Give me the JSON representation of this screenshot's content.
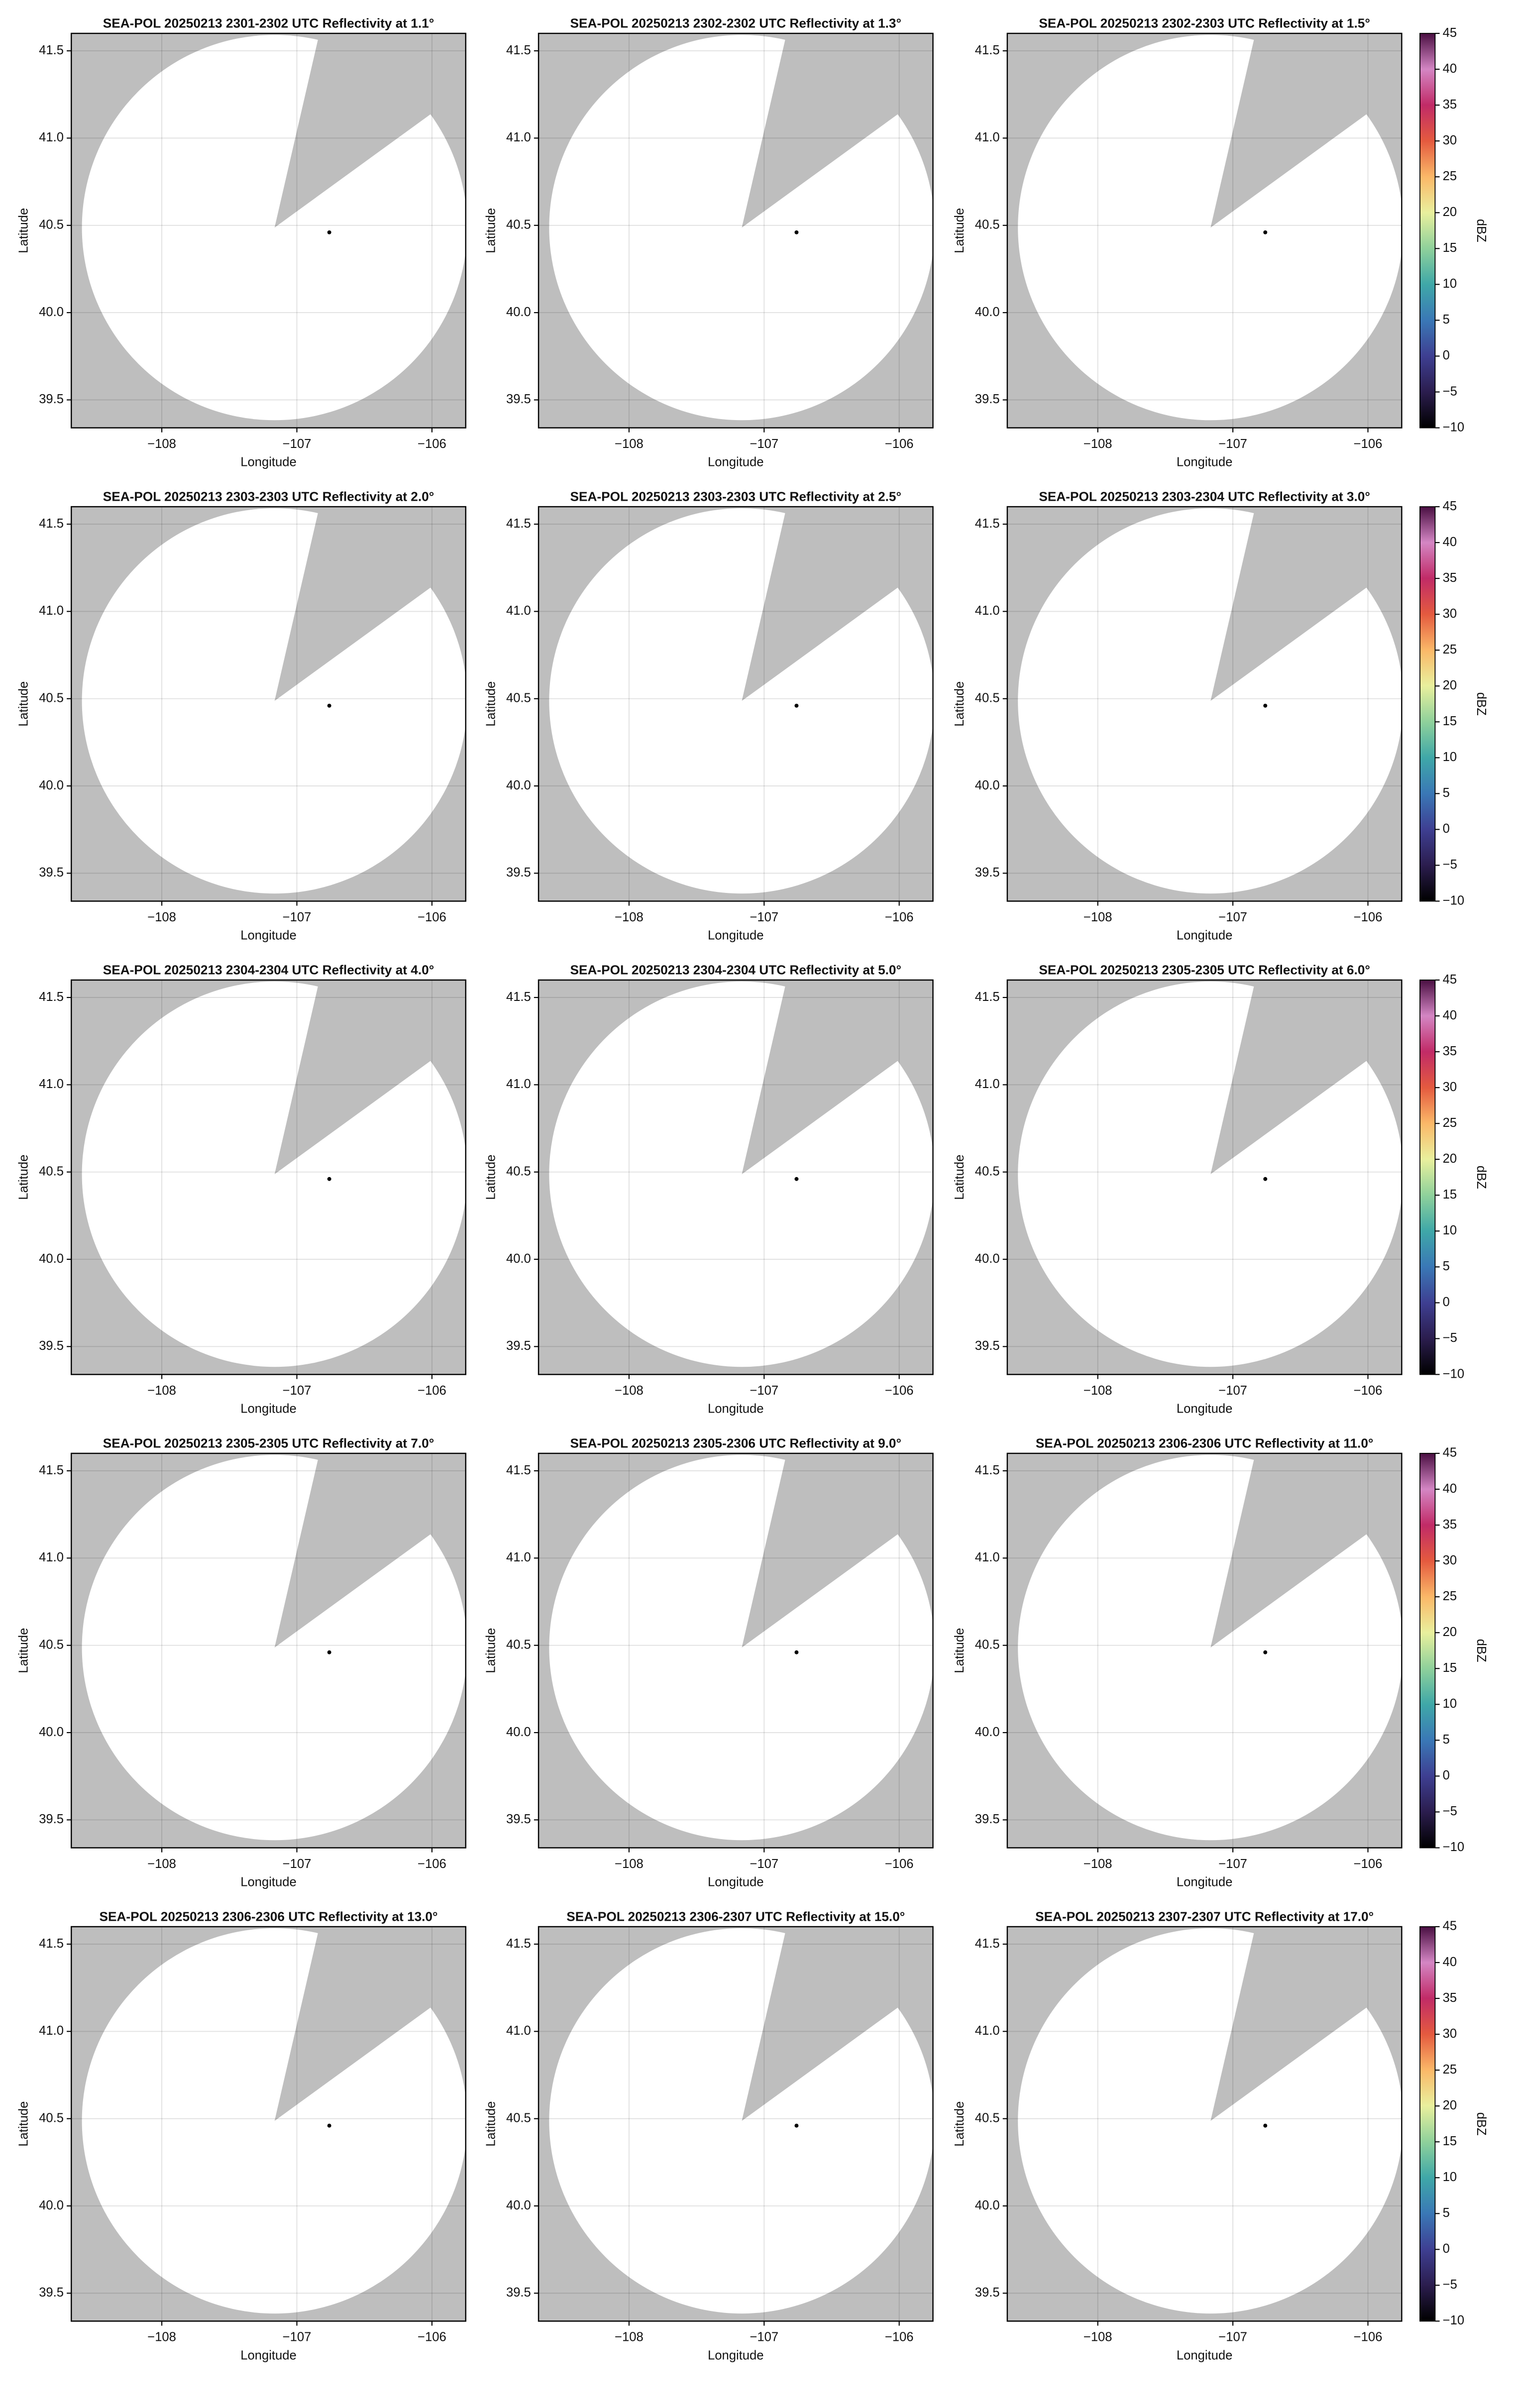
{
  "chart_data": [
    {
      "type": "radar",
      "title": "SEA-POL 20250213 2301-2302 UTC Reflectivity at 1.1°",
      "xlabel": "Longitude",
      "ylabel": "Latitude",
      "xlim": [
        -108.67,
        -105.75
      ],
      "ylim": [
        39.34,
        41.6
      ],
      "xticks": [
        {
          "value": -108,
          "label": "−108"
        },
        {
          "value": -107,
          "label": "−107"
        },
        {
          "value": -106,
          "label": "−106"
        }
      ],
      "yticks": [
        39.5,
        {
          "value": 40,
          "label": "40.0"
        },
        40.5,
        {
          "value": 41,
          "label": "41.0"
        },
        41.5
      ],
      "grid": true,
      "points": {
        "x": [
          -106.76
        ],
        "y": [
          40.46
        ],
        "color": "#000000"
      }
    },
    {
      "type": "radar",
      "title": "SEA-POL 20250213 2302-2302 UTC Reflectivity at 1.3°",
      "xlabel": "Longitude",
      "ylabel": "Latitude",
      "xlim": [
        -108.67,
        -105.75
      ],
      "ylim": [
        39.34,
        41.6
      ],
      "xticks": [
        {
          "value": -108,
          "label": "−108"
        },
        {
          "value": -107,
          "label": "−107"
        },
        {
          "value": -106,
          "label": "−106"
        }
      ],
      "yticks": [
        39.5,
        {
          "value": 40,
          "label": "40.0"
        },
        40.5,
        {
          "value": 41,
          "label": "41.0"
        },
        41.5
      ],
      "grid": true,
      "points": {
        "x": [
          -106.76
        ],
        "y": [
          40.46
        ],
        "color": "#000000"
      }
    },
    {
      "type": "radar",
      "title": "SEA-POL 20250213 2302-2303 UTC Reflectivity at 1.5°",
      "xlabel": "Longitude",
      "ylabel": "Latitude",
      "xlim": [
        -108.67,
        -105.75
      ],
      "ylim": [
        39.34,
        41.6
      ],
      "xticks": [
        {
          "value": -108,
          "label": "−108"
        },
        {
          "value": -107,
          "label": "−107"
        },
        {
          "value": -106,
          "label": "−106"
        }
      ],
      "yticks": [
        39.5,
        {
          "value": 40,
          "label": "40.0"
        },
        40.5,
        {
          "value": 41,
          "label": "41.0"
        },
        41.5
      ],
      "grid": true,
      "points": {
        "x": [
          -106.76
        ],
        "y": [
          40.46
        ],
        "color": "#000000"
      },
      "colorbar": {
        "label": "dBZ",
        "lim": [
          -10,
          45
        ],
        "ticks": [
          {
            "value": -10,
            "label": "−10"
          },
          {
            "value": -5,
            "label": "−5"
          },
          0,
          5,
          10,
          15,
          20,
          25,
          30,
          35,
          40,
          45
        ],
        "colors": [
          "#000000",
          "#2b1d4e",
          "#3e3f92",
          "#3a78b6",
          "#3fa8a8",
          "#8fd19b",
          "#e9f09d",
          "#fbb868",
          "#e45a3f",
          "#c12b67",
          "#d486c4",
          "#4a0f42"
        ]
      }
    },
    {
      "type": "radar",
      "title": "SEA-POL 20250213 2303-2303 UTC Reflectivity at 2.0°",
      "xlabel": "Longitude",
      "ylabel": "Latitude",
      "xlim": [
        -108.67,
        -105.75
      ],
      "ylim": [
        39.34,
        41.6
      ],
      "xticks": [
        {
          "value": -108,
          "label": "−108"
        },
        {
          "value": -107,
          "label": "−107"
        },
        {
          "value": -106,
          "label": "−106"
        }
      ],
      "yticks": [
        39.5,
        {
          "value": 40,
          "label": "40.0"
        },
        40.5,
        {
          "value": 41,
          "label": "41.0"
        },
        41.5
      ],
      "grid": true,
      "points": {
        "x": [
          -106.76
        ],
        "y": [
          40.46
        ],
        "color": "#000000"
      }
    },
    {
      "type": "radar",
      "title": "SEA-POL 20250213 2303-2303 UTC Reflectivity at 2.5°",
      "xlabel": "Longitude",
      "ylabel": "Latitude",
      "xlim": [
        -108.67,
        -105.75
      ],
      "ylim": [
        39.34,
        41.6
      ],
      "xticks": [
        {
          "value": -108,
          "label": "−108"
        },
        {
          "value": -107,
          "label": "−107"
        },
        {
          "value": -106,
          "label": "−106"
        }
      ],
      "yticks": [
        39.5,
        {
          "value": 40,
          "label": "40.0"
        },
        40.5,
        {
          "value": 41,
          "label": "41.0"
        },
        41.5
      ],
      "grid": true,
      "points": {
        "x": [
          -106.76
        ],
        "y": [
          40.46
        ],
        "color": "#000000"
      }
    },
    {
      "type": "radar",
      "title": "SEA-POL 20250213 2303-2304 UTC Reflectivity at 3.0°",
      "xlabel": "Longitude",
      "ylabel": "Latitude",
      "xlim": [
        -108.67,
        -105.75
      ],
      "ylim": [
        39.34,
        41.6
      ],
      "xticks": [
        {
          "value": -108,
          "label": "−108"
        },
        {
          "value": -107,
          "label": "−107"
        },
        {
          "value": -106,
          "label": "−106"
        }
      ],
      "yticks": [
        39.5,
        {
          "value": 40,
          "label": "40.0"
        },
        40.5,
        {
          "value": 41,
          "label": "41.0"
        },
        41.5
      ],
      "grid": true,
      "points": {
        "x": [
          -106.76
        ],
        "y": [
          40.46
        ],
        "color": "#000000"
      },
      "colorbar": {
        "label": "dBZ",
        "lim": [
          -10,
          45
        ],
        "ticks": [
          {
            "value": -10,
            "label": "−10"
          },
          {
            "value": -5,
            "label": "−5"
          },
          0,
          5,
          10,
          15,
          20,
          25,
          30,
          35,
          40,
          45
        ],
        "colors": [
          "#000000",
          "#2b1d4e",
          "#3e3f92",
          "#3a78b6",
          "#3fa8a8",
          "#8fd19b",
          "#e9f09d",
          "#fbb868",
          "#e45a3f",
          "#c12b67",
          "#d486c4",
          "#4a0f42"
        ]
      }
    },
    {
      "type": "radar",
      "title": "SEA-POL 20250213 2304-2304 UTC Reflectivity at 4.0°",
      "xlabel": "Longitude",
      "ylabel": "Latitude",
      "xlim": [
        -108.67,
        -105.75
      ],
      "ylim": [
        39.34,
        41.6
      ],
      "xticks": [
        {
          "value": -108,
          "label": "−108"
        },
        {
          "value": -107,
          "label": "−107"
        },
        {
          "value": -106,
          "label": "−106"
        }
      ],
      "yticks": [
        39.5,
        {
          "value": 40,
          "label": "40.0"
        },
        40.5,
        {
          "value": 41,
          "label": "41.0"
        },
        41.5
      ],
      "grid": true,
      "points": {
        "x": [
          -106.76
        ],
        "y": [
          40.46
        ],
        "color": "#000000"
      }
    },
    {
      "type": "radar",
      "title": "SEA-POL 20250213 2304-2304 UTC Reflectivity at 5.0°",
      "xlabel": "Longitude",
      "ylabel": "Latitude",
      "xlim": [
        -108.67,
        -105.75
      ],
      "ylim": [
        39.34,
        41.6
      ],
      "xticks": [
        {
          "value": -108,
          "label": "−108"
        },
        {
          "value": -107,
          "label": "−107"
        },
        {
          "value": -106,
          "label": "−106"
        }
      ],
      "yticks": [
        39.5,
        {
          "value": 40,
          "label": "40.0"
        },
        40.5,
        {
          "value": 41,
          "label": "41.0"
        },
        41.5
      ],
      "grid": true,
      "points": {
        "x": [
          -106.76
        ],
        "y": [
          40.46
        ],
        "color": "#000000"
      }
    },
    {
      "type": "radar",
      "title": "SEA-POL 20250213 2305-2305 UTC Reflectivity at 6.0°",
      "xlabel": "Longitude",
      "ylabel": "Latitude",
      "xlim": [
        -108.67,
        -105.75
      ],
      "ylim": [
        39.34,
        41.6
      ],
      "xticks": [
        {
          "value": -108,
          "label": "−108"
        },
        {
          "value": -107,
          "label": "−107"
        },
        {
          "value": -106,
          "label": "−106"
        }
      ],
      "yticks": [
        39.5,
        {
          "value": 40,
          "label": "40.0"
        },
        40.5,
        {
          "value": 41,
          "label": "41.0"
        },
        41.5
      ],
      "grid": true,
      "points": {
        "x": [
          -106.76
        ],
        "y": [
          40.46
        ],
        "color": "#000000"
      },
      "colorbar": {
        "label": "dBZ",
        "lim": [
          -10,
          45
        ],
        "ticks": [
          {
            "value": -10,
            "label": "−10"
          },
          {
            "value": -5,
            "label": "−5"
          },
          0,
          5,
          10,
          15,
          20,
          25,
          30,
          35,
          40,
          45
        ],
        "colors": [
          "#000000",
          "#2b1d4e",
          "#3e3f92",
          "#3a78b6",
          "#3fa8a8",
          "#8fd19b",
          "#e9f09d",
          "#fbb868",
          "#e45a3f",
          "#c12b67",
          "#d486c4",
          "#4a0f42"
        ]
      }
    },
    {
      "type": "radar",
      "title": "SEA-POL 20250213 2305-2305 UTC Reflectivity at 7.0°",
      "xlabel": "Longitude",
      "ylabel": "Latitude",
      "xlim": [
        -108.67,
        -105.75
      ],
      "ylim": [
        39.34,
        41.6
      ],
      "xticks": [
        {
          "value": -108,
          "label": "−108"
        },
        {
          "value": -107,
          "label": "−107"
        },
        {
          "value": -106,
          "label": "−106"
        }
      ],
      "yticks": [
        39.5,
        {
          "value": 40,
          "label": "40.0"
        },
        40.5,
        {
          "value": 41,
          "label": "41.0"
        },
        41.5
      ],
      "grid": true,
      "points": {
        "x": [
          -106.76
        ],
        "y": [
          40.46
        ],
        "color": "#000000"
      }
    },
    {
      "type": "radar",
      "title": "SEA-POL 20250213 2305-2306 UTC Reflectivity at 9.0°",
      "xlabel": "Longitude",
      "ylabel": "Latitude",
      "xlim": [
        -108.67,
        -105.75
      ],
      "ylim": [
        39.34,
        41.6
      ],
      "xticks": [
        {
          "value": -108,
          "label": "−108"
        },
        {
          "value": -107,
          "label": "−107"
        },
        {
          "value": -106,
          "label": "−106"
        }
      ],
      "yticks": [
        39.5,
        {
          "value": 40,
          "label": "40.0"
        },
        40.5,
        {
          "value": 41,
          "label": "41.0"
        },
        41.5
      ],
      "grid": true,
      "points": {
        "x": [
          -106.76
        ],
        "y": [
          40.46
        ],
        "color": "#000000"
      }
    },
    {
      "type": "radar",
      "title": "SEA-POL 20250213 2306-2306 UTC Reflectivity at 11.0°",
      "xlabel": "Longitude",
      "ylabel": "Latitude",
      "xlim": [
        -108.67,
        -105.75
      ],
      "ylim": [
        39.34,
        41.6
      ],
      "xticks": [
        {
          "value": -108,
          "label": "−108"
        },
        {
          "value": -107,
          "label": "−107"
        },
        {
          "value": -106,
          "label": "−106"
        }
      ],
      "yticks": [
        39.5,
        {
          "value": 40,
          "label": "40.0"
        },
        40.5,
        {
          "value": 41,
          "label": "41.0"
        },
        41.5
      ],
      "grid": true,
      "points": {
        "x": [
          -106.76
        ],
        "y": [
          40.46
        ],
        "color": "#000000"
      },
      "colorbar": {
        "label": "dBZ",
        "lim": [
          -10,
          45
        ],
        "ticks": [
          {
            "value": -10,
            "label": "−10"
          },
          {
            "value": -5,
            "label": "−5"
          },
          0,
          5,
          10,
          15,
          20,
          25,
          30,
          35,
          40,
          45
        ],
        "colors": [
          "#000000",
          "#2b1d4e",
          "#3e3f92",
          "#3a78b6",
          "#3fa8a8",
          "#8fd19b",
          "#e9f09d",
          "#fbb868",
          "#e45a3f",
          "#c12b67",
          "#d486c4",
          "#4a0f42"
        ]
      }
    },
    {
      "type": "radar",
      "title": "SEA-POL 20250213 2306-2306 UTC Reflectivity at 13.0°",
      "xlabel": "Longitude",
      "ylabel": "Latitude",
      "xlim": [
        -108.67,
        -105.75
      ],
      "ylim": [
        39.34,
        41.6
      ],
      "xticks": [
        {
          "value": -108,
          "label": "−108"
        },
        {
          "value": -107,
          "label": "−107"
        },
        {
          "value": -106,
          "label": "−106"
        }
      ],
      "yticks": [
        39.5,
        {
          "value": 40,
          "label": "40.0"
        },
        40.5,
        {
          "value": 41,
          "label": "41.0"
        },
        41.5
      ],
      "grid": true,
      "points": {
        "x": [
          -106.76
        ],
        "y": [
          40.46
        ],
        "color": "#000000"
      }
    },
    {
      "type": "radar",
      "title": "SEA-POL 20250213 2306-2307 UTC Reflectivity at 15.0°",
      "xlabel": "Longitude",
      "ylabel": "Latitude",
      "xlim": [
        -108.67,
        -105.75
      ],
      "ylim": [
        39.34,
        41.6
      ],
      "xticks": [
        {
          "value": -108,
          "label": "−108"
        },
        {
          "value": -107,
          "label": "−107"
        },
        {
          "value": -106,
          "label": "−106"
        }
      ],
      "yticks": [
        39.5,
        {
          "value": 40,
          "label": "40.0"
        },
        40.5,
        {
          "value": 41,
          "label": "41.0"
        },
        41.5
      ],
      "grid": true,
      "points": {
        "x": [
          -106.76
        ],
        "y": [
          40.46
        ],
        "color": "#000000"
      }
    },
    {
      "type": "radar",
      "title": "SEA-POL 20250213 2307-2307 UTC Reflectivity at 17.0°",
      "xlabel": "Longitude",
      "ylabel": "Latitude",
      "xlim": [
        -108.67,
        -105.75
      ],
      "ylim": [
        39.34,
        41.6
      ],
      "xticks": [
        {
          "value": -108,
          "label": "−108"
        },
        {
          "value": -107,
          "label": "−107"
        },
        {
          "value": -106,
          "label": "−106"
        }
      ],
      "yticks": [
        39.5,
        {
          "value": 40,
          "label": "40.0"
        },
        40.5,
        {
          "value": 41,
          "label": "41.0"
        },
        41.5
      ],
      "grid": true,
      "points": {
        "x": [
          -106.76
        ],
        "y": [
          40.46
        ],
        "color": "#000000"
      },
      "colorbar": {
        "label": "dBZ",
        "lim": [
          -10,
          45
        ],
        "ticks": [
          {
            "value": -10,
            "label": "−10"
          },
          {
            "value": -5,
            "label": "−5"
          },
          0,
          5,
          10,
          15,
          20,
          25,
          30,
          35,
          40,
          45
        ],
        "colors": [
          "#000000",
          "#2b1d4e",
          "#3e3f92",
          "#3a78b6",
          "#3fa8a8",
          "#8fd19b",
          "#e9f09d",
          "#fbb868",
          "#e45a3f",
          "#c12b67",
          "#d486c4",
          "#4a0f42"
        ]
      }
    }
  ]
}
